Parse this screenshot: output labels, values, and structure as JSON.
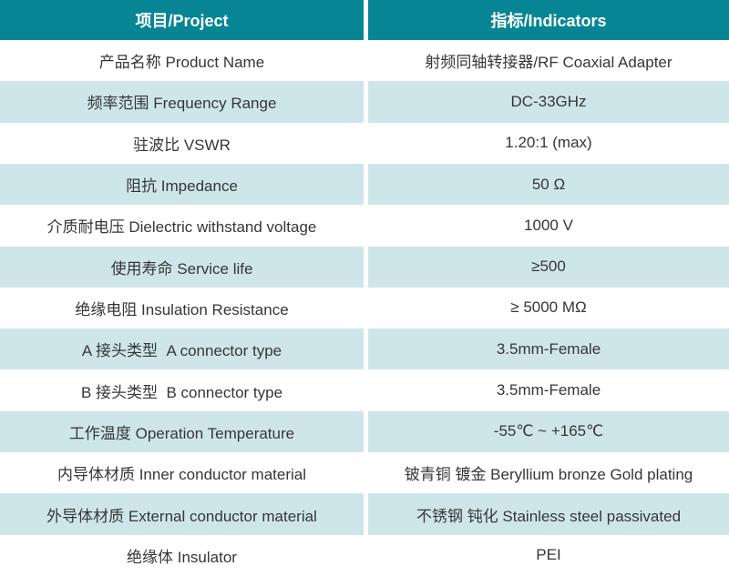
{
  "table": {
    "columns": [
      "项目/Project",
      "指标/Indicators"
    ],
    "rows": [
      {
        "project": "产品名称 Product Name",
        "indicator": "射频同轴转接器/RF Coaxial Adapter"
      },
      {
        "project": "频率范围 Frequency Range",
        "indicator": "DC-33GHz"
      },
      {
        "project": "驻波比 VSWR",
        "indicator": "1.20:1 (max)"
      },
      {
        "project": "阻抗 Impedance",
        "indicator": "50 Ω"
      },
      {
        "project": "介质耐电压 Dielectric withstand voltage",
        "indicator": "1000 V"
      },
      {
        "project": "使用寿命 Service life",
        "indicator": "≥500"
      },
      {
        "project": "绝缘电阻 Insulation Resistance",
        "indicator": "≥ 5000 MΩ"
      },
      {
        "project": "A 接头类型  A connector type",
        "indicator": "3.5mm-Female"
      },
      {
        "project": "B 接头类型  B connector type",
        "indicator": "3.5mm-Female"
      },
      {
        "project": "工作温度 Operation Temperature",
        "indicator": "-55℃ ~ +165℃"
      },
      {
        "project": "内导体材质 Inner conductor material",
        "indicator": "铍青铜 镀金 Beryllium bronze Gold plating"
      },
      {
        "project": "外导体材质 External conductor material",
        "indicator": "不锈钢 钝化 Stainless steel passivated"
      },
      {
        "project": "绝缘体 Insulator",
        "indicator": "PEI"
      }
    ],
    "colors": {
      "header-bg": "#088594",
      "header-text": "#ffffff",
      "row-alt-bg": "#cee6ea",
      "row-bg": "#ffffff",
      "body-text": "#363636"
    }
  }
}
